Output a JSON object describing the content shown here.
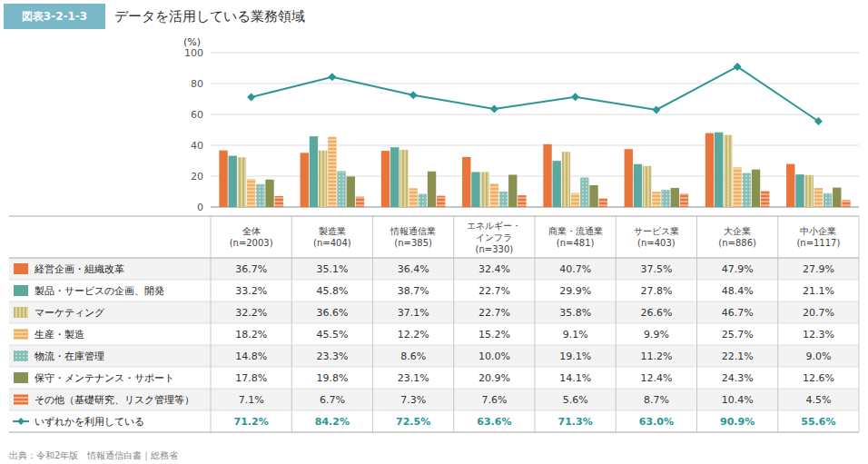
{
  "chart_data": {
    "type": "bar",
    "title": "データを活用している業務領域",
    "annotations": [
      "図表3-2-1-3",
      "出典：令和2年版　情報通信白書｜総務省"
    ],
    "ylabel": "(%)",
    "categories": [
      "全体\n(n=2003)",
      "製造業\n(n=404)",
      "情報通信業\n(n=385)",
      "エネルギー・\nインフラ\n(n=330)",
      "商業・流通業\n(n=481)",
      "サービス業\n(n=403)",
      "大企業\n(n=886)",
      "中小企業\n(n=1117)"
    ],
    "series": [
      {
        "name": "経営企画・組織改革",
        "type": "bar",
        "color": "#E8763A",
        "values": [
          36.7,
          35.1,
          36.4,
          32.4,
          40.7,
          37.5,
          47.9,
          27.9
        ],
        "value_labels": [
          "36.7%",
          "35.1%",
          "36.4%",
          "32.4%",
          "40.7%",
          "37.5%",
          "47.9%",
          "27.9%"
        ]
      },
      {
        "name": "製品・サービスの企画、開発",
        "type": "bar",
        "color": "#5BA89E",
        "values": [
          33.2,
          45.8,
          38.7,
          22.7,
          29.9,
          27.8,
          48.4,
          21.1
        ],
        "value_labels": [
          "33.2%",
          "45.8%",
          "38.7%",
          "22.7%",
          "29.9%",
          "27.8%",
          "48.4%",
          "21.1%"
        ]
      },
      {
        "name": "マーケティング",
        "type": "bar",
        "color": "#C8B86A",
        "values": [
          32.2,
          36.6,
          37.1,
          22.7,
          35.8,
          26.6,
          46.7,
          20.7
        ],
        "value_labels": [
          "32.2%",
          "36.6%",
          "37.1%",
          "22.7%",
          "35.8%",
          "26.6%",
          "46.7%",
          "20.7%"
        ]
      },
      {
        "name": "生産・製造",
        "type": "bar",
        "color": "#F0B060",
        "values": [
          18.2,
          45.5,
          12.2,
          15.2,
          9.1,
          9.9,
          25.7,
          12.3
        ],
        "value_labels": [
          "18.2%",
          "45.5%",
          "12.2%",
          "15.2%",
          "9.1%",
          "9.9%",
          "25.7%",
          "12.3%"
        ]
      },
      {
        "name": "物流・在庫管理",
        "type": "bar",
        "color": "#88C0B8",
        "values": [
          14.8,
          23.3,
          8.6,
          10.0,
          19.1,
          11.2,
          22.1,
          9.0
        ],
        "value_labels": [
          "14.8%",
          "23.3%",
          "8.6%",
          "10.0%",
          "19.1%",
          "11.2%",
          "22.1%",
          "9.0%"
        ]
      },
      {
        "name": "保守・メンテナンス・サポート",
        "type": "bar",
        "color": "#8A9050",
        "values": [
          17.8,
          19.8,
          23.1,
          20.9,
          14.1,
          12.4,
          24.3,
          12.6
        ],
        "value_labels": [
          "17.8%",
          "19.8%",
          "23.1%",
          "20.9%",
          "14.1%",
          "12.4%",
          "24.3%",
          "12.6%"
        ]
      },
      {
        "name": "その他（基礎研究、リスク管理等）",
        "type": "bar",
        "color": "#E8763A",
        "values": [
          7.1,
          6.7,
          7.3,
          7.6,
          5.6,
          8.7,
          10.4,
          4.5
        ],
        "value_labels": [
          "7.1%",
          "6.7%",
          "7.3%",
          "7.6%",
          "5.6%",
          "8.7%",
          "10.4%",
          "4.5%"
        ]
      },
      {
        "name": "いずれかを利用している",
        "type": "line",
        "color": "#2A9696",
        "marker": "diamond",
        "values": [
          71.2,
          84.2,
          72.5,
          63.6,
          71.3,
          63.0,
          90.9,
          55.6
        ],
        "value_labels": [
          "71.2%",
          "84.2%",
          "72.5%",
          "63.6%",
          "71.3%",
          "63.0%",
          "90.9%",
          "55.6%"
        ]
      }
    ],
    "ylim": [
      0,
      100
    ],
    "yticks": [
      0,
      20,
      40,
      60,
      80,
      100
    ],
    "grid": true
  }
}
